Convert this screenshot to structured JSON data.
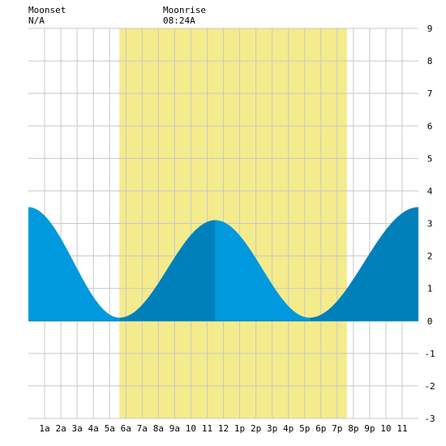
{
  "header": {
    "moonset_label": "Moonset",
    "moonset_value": "N/A",
    "moonrise_label": "Moonrise",
    "moonrise_value": "08:24A"
  },
  "colors": {
    "daylight": "#f4eb8c",
    "tide_light": "#0099dd",
    "tide_dark": "#0080bb",
    "grid": "#c8c8c8",
    "background": "#ffffff"
  },
  "chart_data": {
    "type": "area",
    "title": "",
    "xlabel": "",
    "ylabel": "",
    "xlim": [
      0,
      24
    ],
    "ylim": [
      -3,
      9
    ],
    "x_ticks": [
      {
        "x": 1,
        "label": "1a"
      },
      {
        "x": 2,
        "label": "2a"
      },
      {
        "x": 3,
        "label": "3a"
      },
      {
        "x": 4,
        "label": "4a"
      },
      {
        "x": 5,
        "label": "5a"
      },
      {
        "x": 6,
        "label": "6a"
      },
      {
        "x": 7,
        "label": "7a"
      },
      {
        "x": 8,
        "label": "8a"
      },
      {
        "x": 9,
        "label": "9a"
      },
      {
        "x": 10,
        "label": "10"
      },
      {
        "x": 11,
        "label": "11"
      },
      {
        "x": 12,
        "label": "12"
      },
      {
        "x": 13,
        "label": "1p"
      },
      {
        "x": 14,
        "label": "2p"
      },
      {
        "x": 15,
        "label": "3p"
      },
      {
        "x": 16,
        "label": "4p"
      },
      {
        "x": 17,
        "label": "5p"
      },
      {
        "x": 18,
        "label": "6p"
      },
      {
        "x": 19,
        "label": "7p"
      },
      {
        "x": 20,
        "label": "8p"
      },
      {
        "x": 21,
        "label": "9p"
      },
      {
        "x": 22,
        "label": "10"
      },
      {
        "x": 23,
        "label": "11"
      }
    ],
    "y_ticks": [
      9,
      8,
      7,
      6,
      5,
      4,
      3,
      2,
      1,
      0,
      -1,
      -2,
      -3
    ],
    "daylight": {
      "start": 5.6,
      "end": 19.6
    },
    "shade_change_hours": [
      5.6,
      11.5,
      17.3
    ],
    "tide_extrema": [
      {
        "hour": 0.0,
        "height": 3.5
      },
      {
        "hour": 5.6,
        "height": 0.1
      },
      {
        "hour": 11.5,
        "height": 3.1
      },
      {
        "hour": 17.3,
        "height": 0.1
      },
      {
        "hour": 24.0,
        "height": 3.5
      }
    ]
  }
}
